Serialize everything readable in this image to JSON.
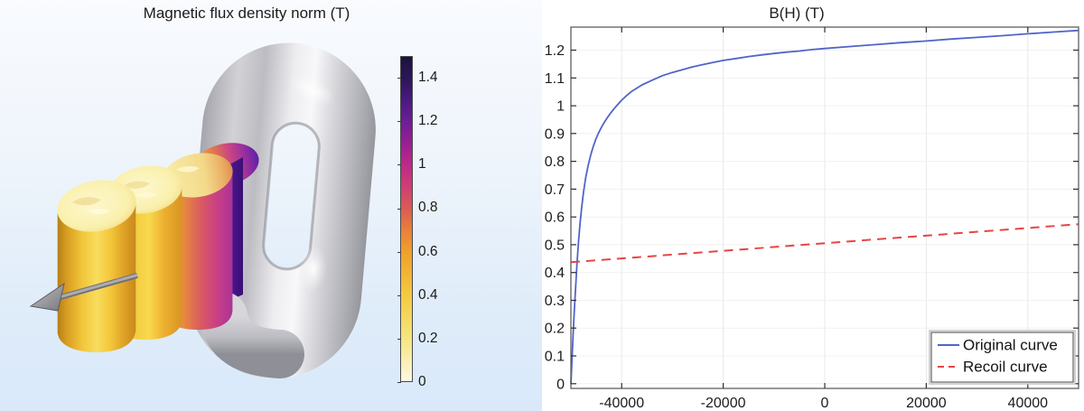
{
  "left_panel": {
    "title": "Magnetic flux density norm (T)",
    "colorbar": {
      "min": 0,
      "max": 1.5,
      "tick_labels": [
        "1.4",
        "1.2",
        "1",
        "0.8",
        "0.6",
        "0.4",
        "0.2",
        "0"
      ],
      "gradient": [
        {
          "v": 0.0,
          "c": "#fcf8e2"
        },
        {
          "v": 0.2,
          "c": "#f5e57f"
        },
        {
          "v": 0.4,
          "c": "#f3c93e"
        },
        {
          "v": 0.6,
          "c": "#efa02b"
        },
        {
          "v": 0.7,
          "c": "#e87f3a"
        },
        {
          "v": 0.8,
          "c": "#db5a55"
        },
        {
          "v": 0.9,
          "c": "#cf3e74"
        },
        {
          "v": 1.0,
          "c": "#bd2a87"
        },
        {
          "v": 1.1,
          "c": "#991f93"
        },
        {
          "v": 1.2,
          "c": "#6e1e97"
        },
        {
          "v": 1.3,
          "c": "#491a80"
        },
        {
          "v": 1.4,
          "c": "#2c1659"
        },
        {
          "v": 1.5,
          "c": "#1d1240"
        }
      ]
    },
    "scene": {
      "objects": [
        {
          "name": "chain-link-ring",
          "material_color": "#c9c9ce"
        },
        {
          "name": "magnet-cylinder-1",
          "material_color": "#f3c93e"
        },
        {
          "name": "magnet-cylinder-2",
          "material_color": "#f0bb35"
        },
        {
          "name": "magnet-cylinder-3",
          "material_color": "#cc3f7f"
        },
        {
          "name": "magnet-cylinder-4",
          "material_color": "#4a1488"
        },
        {
          "name": "magnetization-arrow",
          "material_color": "#8e8e93"
        }
      ]
    }
  },
  "chart_data": {
    "type": "line",
    "title": "B(H) (T)",
    "xlabel": "",
    "ylabel": "",
    "xlim": [
      -50000,
      50000
    ],
    "ylim": [
      -0.017,
      1.283
    ],
    "x_ticks": [
      -40000,
      -20000,
      0,
      20000,
      40000
    ],
    "y_ticks": [
      0,
      0.1,
      0.2,
      0.3,
      0.4,
      0.5,
      0.6,
      0.7,
      0.8,
      0.9,
      1,
      1.1,
      1.2
    ],
    "grid": true,
    "legend_position": "bottom-right",
    "colors": {
      "frame": "#5f5f5f",
      "tick": "#2e2e2e",
      "grid_vertical": "#e9e9e9",
      "grid_horizontal": "#f1f1f1",
      "text": "#1c1c1c",
      "legend_border_outer": "#c4c4c4",
      "legend_border_inner": "#616161"
    },
    "series": [
      {
        "name": "Original curve",
        "color": "#5164c9",
        "style": "solid",
        "width": 1.8,
        "points": [
          [
            -50000,
            0
          ],
          [
            -49800,
            0.08
          ],
          [
            -49600,
            0.16
          ],
          [
            -49400,
            0.24
          ],
          [
            -49100,
            0.34
          ],
          [
            -48800,
            0.43
          ],
          [
            -48500,
            0.51
          ],
          [
            -48200,
            0.575
          ],
          [
            -47900,
            0.63
          ],
          [
            -47500,
            0.69
          ],
          [
            -47100,
            0.74
          ],
          [
            -46600,
            0.785
          ],
          [
            -46100,
            0.822
          ],
          [
            -45600,
            0.853
          ],
          [
            -45100,
            0.879
          ],
          [
            -44600,
            0.9
          ],
          [
            -44000,
            0.922
          ],
          [
            -43400,
            0.941
          ],
          [
            -42800,
            0.958
          ],
          [
            -42200,
            0.973
          ],
          [
            -41600,
            0.987
          ],
          [
            -41000,
            1.0
          ],
          [
            -40000,
            1.02
          ],
          [
            -39000,
            1.037
          ],
          [
            -38000,
            1.052
          ],
          [
            -36000,
            1.075
          ],
          [
            -34000,
            1.092
          ],
          [
            -32000,
            1.108
          ],
          [
            -30000,
            1.12
          ],
          [
            -28000,
            1.13
          ],
          [
            -26000,
            1.14
          ],
          [
            -24000,
            1.148
          ],
          [
            -22000,
            1.156
          ],
          [
            -20000,
            1.163
          ],
          [
            -17500,
            1.17
          ],
          [
            -15000,
            1.177
          ],
          [
            -12500,
            1.183
          ],
          [
            -10000,
            1.188
          ],
          [
            -7500,
            1.193
          ],
          [
            -5000,
            1.197
          ],
          [
            -2500,
            1.202
          ],
          [
            0,
            1.206
          ],
          [
            5000,
            1.213
          ],
          [
            10000,
            1.22
          ],
          [
            15000,
            1.227
          ],
          [
            20000,
            1.233
          ],
          [
            25000,
            1.24
          ],
          [
            30000,
            1.246
          ],
          [
            35000,
            1.252
          ],
          [
            40000,
            1.259
          ],
          [
            45000,
            1.265
          ],
          [
            50000,
            1.271
          ]
        ]
      },
      {
        "name": "Recoil curve",
        "color": "#e64545",
        "style": "dashed",
        "width": 2,
        "points": [
          [
            -50000,
            0.437
          ],
          [
            50000,
            0.574
          ]
        ]
      }
    ]
  }
}
